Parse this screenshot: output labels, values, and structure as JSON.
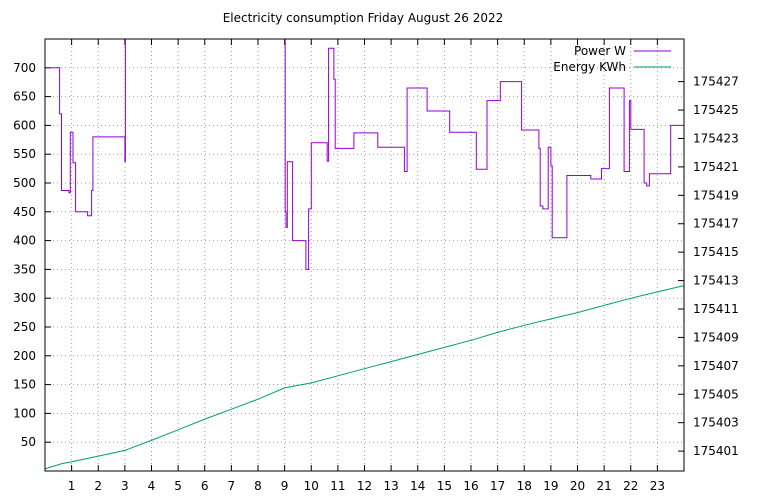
{
  "chart_data": {
    "type": "line",
    "title": "Electricity consumption Friday August 26 2022",
    "xlabel": "",
    "ylabel": "",
    "y2label": "",
    "xlim": [
      0,
      24
    ],
    "ylim": [
      0,
      750
    ],
    "y2lim": [
      175399.6,
      175430.0
    ],
    "grid": true,
    "legend_position": "top-right",
    "x_ticks": [
      1,
      2,
      3,
      4,
      5,
      6,
      7,
      8,
      9,
      10,
      11,
      12,
      13,
      14,
      15,
      16,
      17,
      18,
      19,
      20,
      21,
      22,
      23
    ],
    "y_ticks": [
      50,
      100,
      150,
      200,
      250,
      300,
      350,
      400,
      450,
      500,
      550,
      600,
      650,
      700
    ],
    "y2_ticks": [
      175401,
      175403,
      175405,
      175407,
      175409,
      175411,
      175413,
      175415,
      175417,
      175419,
      175421,
      175423,
      175425,
      175427
    ],
    "series": [
      {
        "name": "Power W",
        "axis": "left",
        "color": "#9400d3",
        "step": true,
        "x": [
          0,
          0.05,
          0.55,
          0.62,
          0.9,
          0.95,
          1.05,
          1.15,
          1.2,
          1.6,
          1.75,
          1.8,
          2.55,
          3.0,
          3.02,
          9.0,
          9.02,
          9.05,
          9.1,
          9.3,
          9.8,
          9.9,
          10.0,
          10.6,
          10.65,
          10.85,
          10.9,
          11.6,
          12.5,
          13.5,
          13.6,
          14.35,
          15.2,
          16.2,
          16.6,
          17.1,
          17.9,
          18.55,
          18.6,
          18.7,
          18.9,
          19.0,
          19.05,
          19.5,
          19.6,
          20.5,
          20.9,
          21.2,
          21.75,
          21.95,
          22.0,
          22.5,
          22.6,
          22.7,
          23.5
        ],
        "y": [
          700,
          700,
          620,
          487,
          483,
          588,
          535,
          450,
          450,
          443,
          487,
          580,
          580,
          537,
          750,
          750,
          450,
          423,
          537,
          400,
          350,
          455,
          570,
          538,
          734,
          680,
          560,
          587,
          562,
          520,
          665,
          625,
          588,
          524,
          643,
          676,
          592,
          560,
          460,
          455,
          562,
          530,
          405,
          405,
          513,
          507,
          525,
          665,
          520,
          643,
          593,
          500,
          495,
          516,
          600
        ]
      },
      {
        "name": "Energy KWh",
        "axis": "right",
        "color": "#009e73",
        "step": false,
        "x": [
          0,
          0.6,
          1,
          2,
          3,
          4,
          5,
          6,
          7,
          8,
          9,
          10,
          11,
          12,
          13,
          14,
          15,
          16,
          17,
          18,
          19,
          20,
          21,
          22,
          23,
          24
        ],
        "y": [
          175399.75,
          175400.1,
          175400.25,
          175400.65,
          175401.05,
          175401.75,
          175402.5,
          175403.25,
          175403.95,
          175404.65,
          175405.45,
          175405.8,
          175406.3,
          175406.8,
          175407.3,
          175407.8,
          175408.3,
          175408.8,
          175409.35,
          175409.85,
          175410.3,
          175410.75,
          175411.25,
          175411.75,
          175412.2,
          175412.65
        ]
      }
    ]
  }
}
